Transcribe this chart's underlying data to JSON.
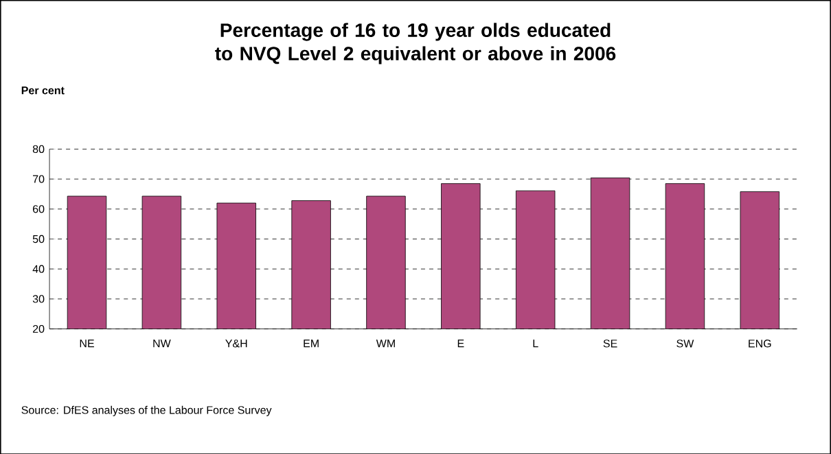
{
  "chart_data": {
    "type": "bar",
    "title": "Percentage of 16 to 19 year olds educated to NVQ Level 2 equivalent or above in 2006",
    "ylabel": "Per cent",
    "categories": [
      "NE",
      "NW",
      "Y&H",
      "EM",
      "WM",
      "E",
      "L",
      "SE",
      "SW",
      "ENG"
    ],
    "values": [
      64.3,
      64.3,
      62,
      62.8,
      64.3,
      68.5,
      66.1,
      70.4,
      68.5,
      65.8
    ],
    "color": "#b0487c",
    "ylim": [
      20,
      80
    ],
    "yticks": [
      20,
      30,
      40,
      50,
      60,
      70,
      80
    ],
    "grid": "y",
    "annotations": [
      "Source: DfES analyses of the Labour Force Survey"
    ]
  }
}
